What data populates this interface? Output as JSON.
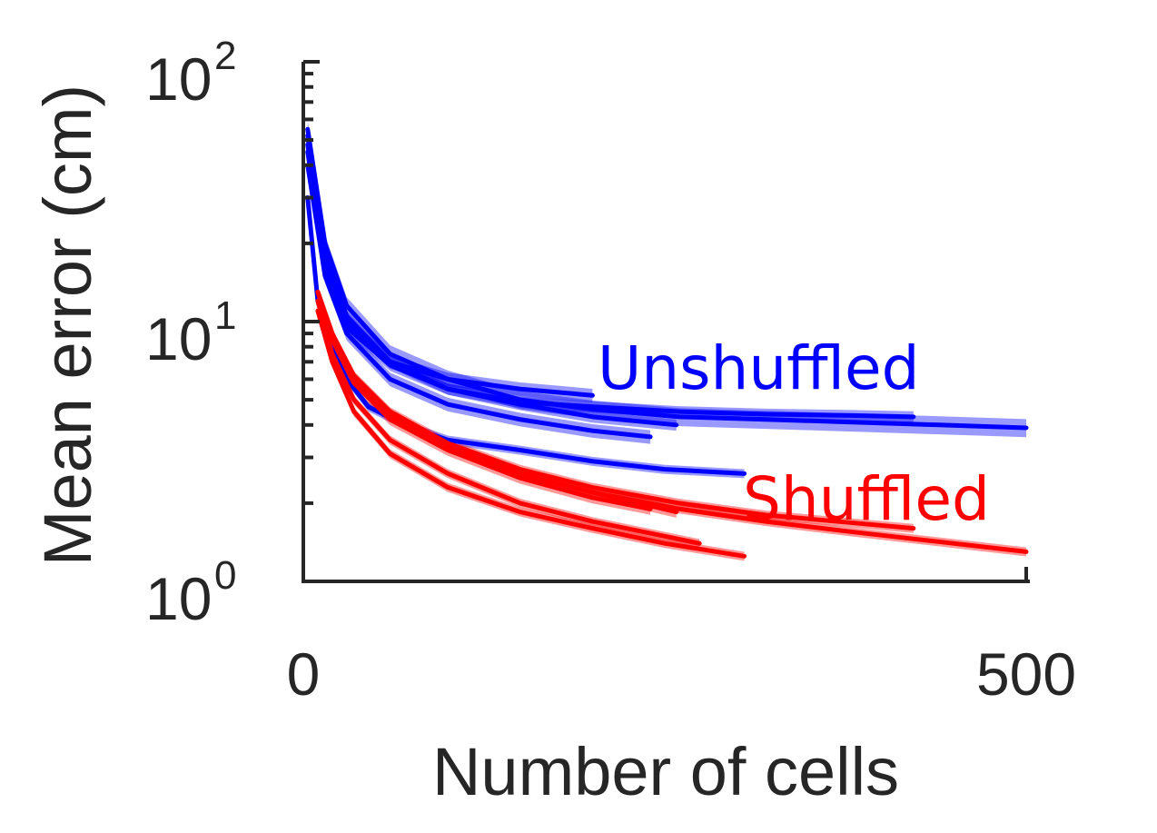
{
  "chart_data": {
    "type": "line",
    "xlabel": "Number of cells",
    "ylabel": "Mean error (cm)",
    "xlim": [
      0,
      500
    ],
    "ylim": [
      1,
      100
    ],
    "yscale": "log",
    "x_ticks": [
      {
        "value": 0,
        "label": "0"
      },
      {
        "value": 500,
        "label": "500"
      }
    ],
    "y_ticks": [
      {
        "value": 1,
        "base": "10",
        "exp": "0"
      },
      {
        "value": 10,
        "base": "10",
        "exp": "1"
      },
      {
        "value": 100,
        "base": "10",
        "exp": "2"
      }
    ],
    "grid": false,
    "annotations": [
      {
        "text": "Unshuffled",
        "color": "#0000ff"
      },
      {
        "text": "Shuffled",
        "color": "#ff0000"
      }
    ],
    "series": [
      {
        "group": "Unshuffled",
        "color": "#0000ff",
        "x": [
          3,
          15,
          30,
          60,
          100,
          150,
          200,
          260,
          320,
          380,
          440,
          500
        ],
        "y": [
          55,
          20,
          11.5,
          7.5,
          6.0,
          5.0,
          4.6,
          4.3,
          4.2,
          4.1,
          4.0,
          3.9
        ],
        "err": 0.08
      },
      {
        "group": "Unshuffled",
        "color": "#0000ff",
        "x": [
          3,
          15,
          30,
          60,
          100,
          150,
          200,
          260,
          320,
          380,
          422
        ],
        "y": [
          52,
          18,
          10.5,
          7.0,
          5.5,
          4.9,
          4.7,
          4.5,
          4.4,
          4.35,
          4.3
        ],
        "err": 0.05
      },
      {
        "group": "Unshuffled",
        "color": "#0000ff",
        "x": [
          3,
          15,
          30,
          60,
          100,
          150,
          200
        ],
        "y": [
          48,
          17,
          10.0,
          7.0,
          6.0,
          5.5,
          5.2
        ],
        "err": 0.06
      },
      {
        "group": "Unshuffled",
        "color": "#0000ff",
        "x": [
          3,
          15,
          30,
          60,
          100,
          150,
          200,
          258
        ],
        "y": [
          45,
          16,
          9.5,
          6.8,
          5.5,
          4.8,
          4.3,
          4.0
        ],
        "err": 0.05
      },
      {
        "group": "Unshuffled",
        "color": "#0000ff",
        "x": [
          3,
          15,
          30,
          60,
          100,
          150,
          200,
          240
        ],
        "y": [
          40,
          15,
          9.0,
          6.0,
          4.8,
          4.2,
          3.8,
          3.6
        ],
        "err": 0.06
      },
      {
        "group": "Unshuffled",
        "color": "#0000ff",
        "x": [
          3,
          10,
          20,
          30,
          45,
          70,
          100,
          150,
          200,
          250,
          305
        ],
        "y": [
          30,
          12,
          8.0,
          6.0,
          4.7,
          4.0,
          3.5,
          3.2,
          2.9,
          2.7,
          2.6
        ],
        "err": 0.04
      },
      {
        "group": "Shuffled",
        "color": "#ff0000",
        "x": [
          10,
          20,
          35,
          60,
          100,
          150,
          200,
          260,
          320,
          380,
          440,
          500
        ],
        "y": [
          13,
          9.0,
          6.0,
          4.3,
          3.3,
          2.6,
          2.2,
          1.9,
          1.7,
          1.55,
          1.42,
          1.3
        ],
        "err": 0.04
      },
      {
        "group": "Shuffled",
        "color": "#ff0000",
        "x": [
          10,
          20,
          35,
          60,
          100,
          150,
          200,
          260,
          320,
          380,
          422
        ],
        "y": [
          13,
          9.0,
          6.2,
          4.5,
          3.4,
          2.7,
          2.3,
          2.0,
          1.8,
          1.68,
          1.6
        ],
        "err": 0.04
      },
      {
        "group": "Shuffled",
        "color": "#ff0000",
        "x": [
          10,
          20,
          35,
          60,
          100,
          150,
          200,
          258
        ],
        "y": [
          13,
          8.8,
          6.0,
          4.4,
          3.3,
          2.6,
          2.2,
          1.85
        ],
        "err": 0.05
      },
      {
        "group": "Shuffled",
        "color": "#ff0000",
        "x": [
          10,
          20,
          35,
          60,
          100,
          150,
          200,
          240
        ],
        "y": [
          12,
          8.5,
          5.8,
          4.2,
          3.2,
          2.5,
          2.1,
          1.9
        ],
        "err": 0.05
      },
      {
        "group": "Shuffled",
        "color": "#ff0000",
        "x": [
          10,
          20,
          35,
          60,
          100,
          150,
          200,
          274
        ],
        "y": [
          12,
          7.5,
          5.0,
          3.5,
          2.6,
          2.0,
          1.7,
          1.4
        ],
        "err": 0.04
      },
      {
        "group": "Shuffled",
        "color": "#ff0000",
        "x": [
          10,
          20,
          35,
          60,
          100,
          150,
          200,
          250,
          305
        ],
        "y": [
          11,
          7.0,
          4.5,
          3.1,
          2.3,
          1.85,
          1.6,
          1.4,
          1.25
        ],
        "err": 0.04
      }
    ]
  }
}
